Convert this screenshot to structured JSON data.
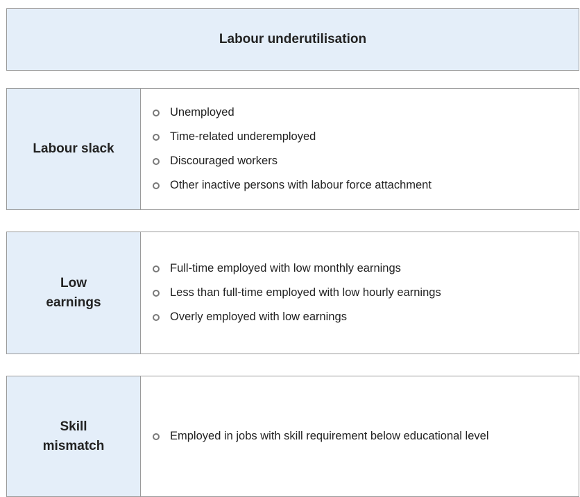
{
  "header": {
    "title": "Labour underutilisation"
  },
  "sections": [
    {
      "label": "Labour slack",
      "items": [
        "Unemployed",
        "Time-related underemployed",
        "Discouraged workers",
        "Other inactive persons with labour force attachment"
      ]
    },
    {
      "label": "Low earnings",
      "items": [
        "Full-time employed with low monthly earnings",
        "Less than full-time employed with low hourly earnings",
        "Overly employed with low earnings"
      ]
    },
    {
      "label": "Skill mismatch",
      "items": [
        "Employed in jobs with skill requirement below educational level"
      ]
    }
  ]
}
